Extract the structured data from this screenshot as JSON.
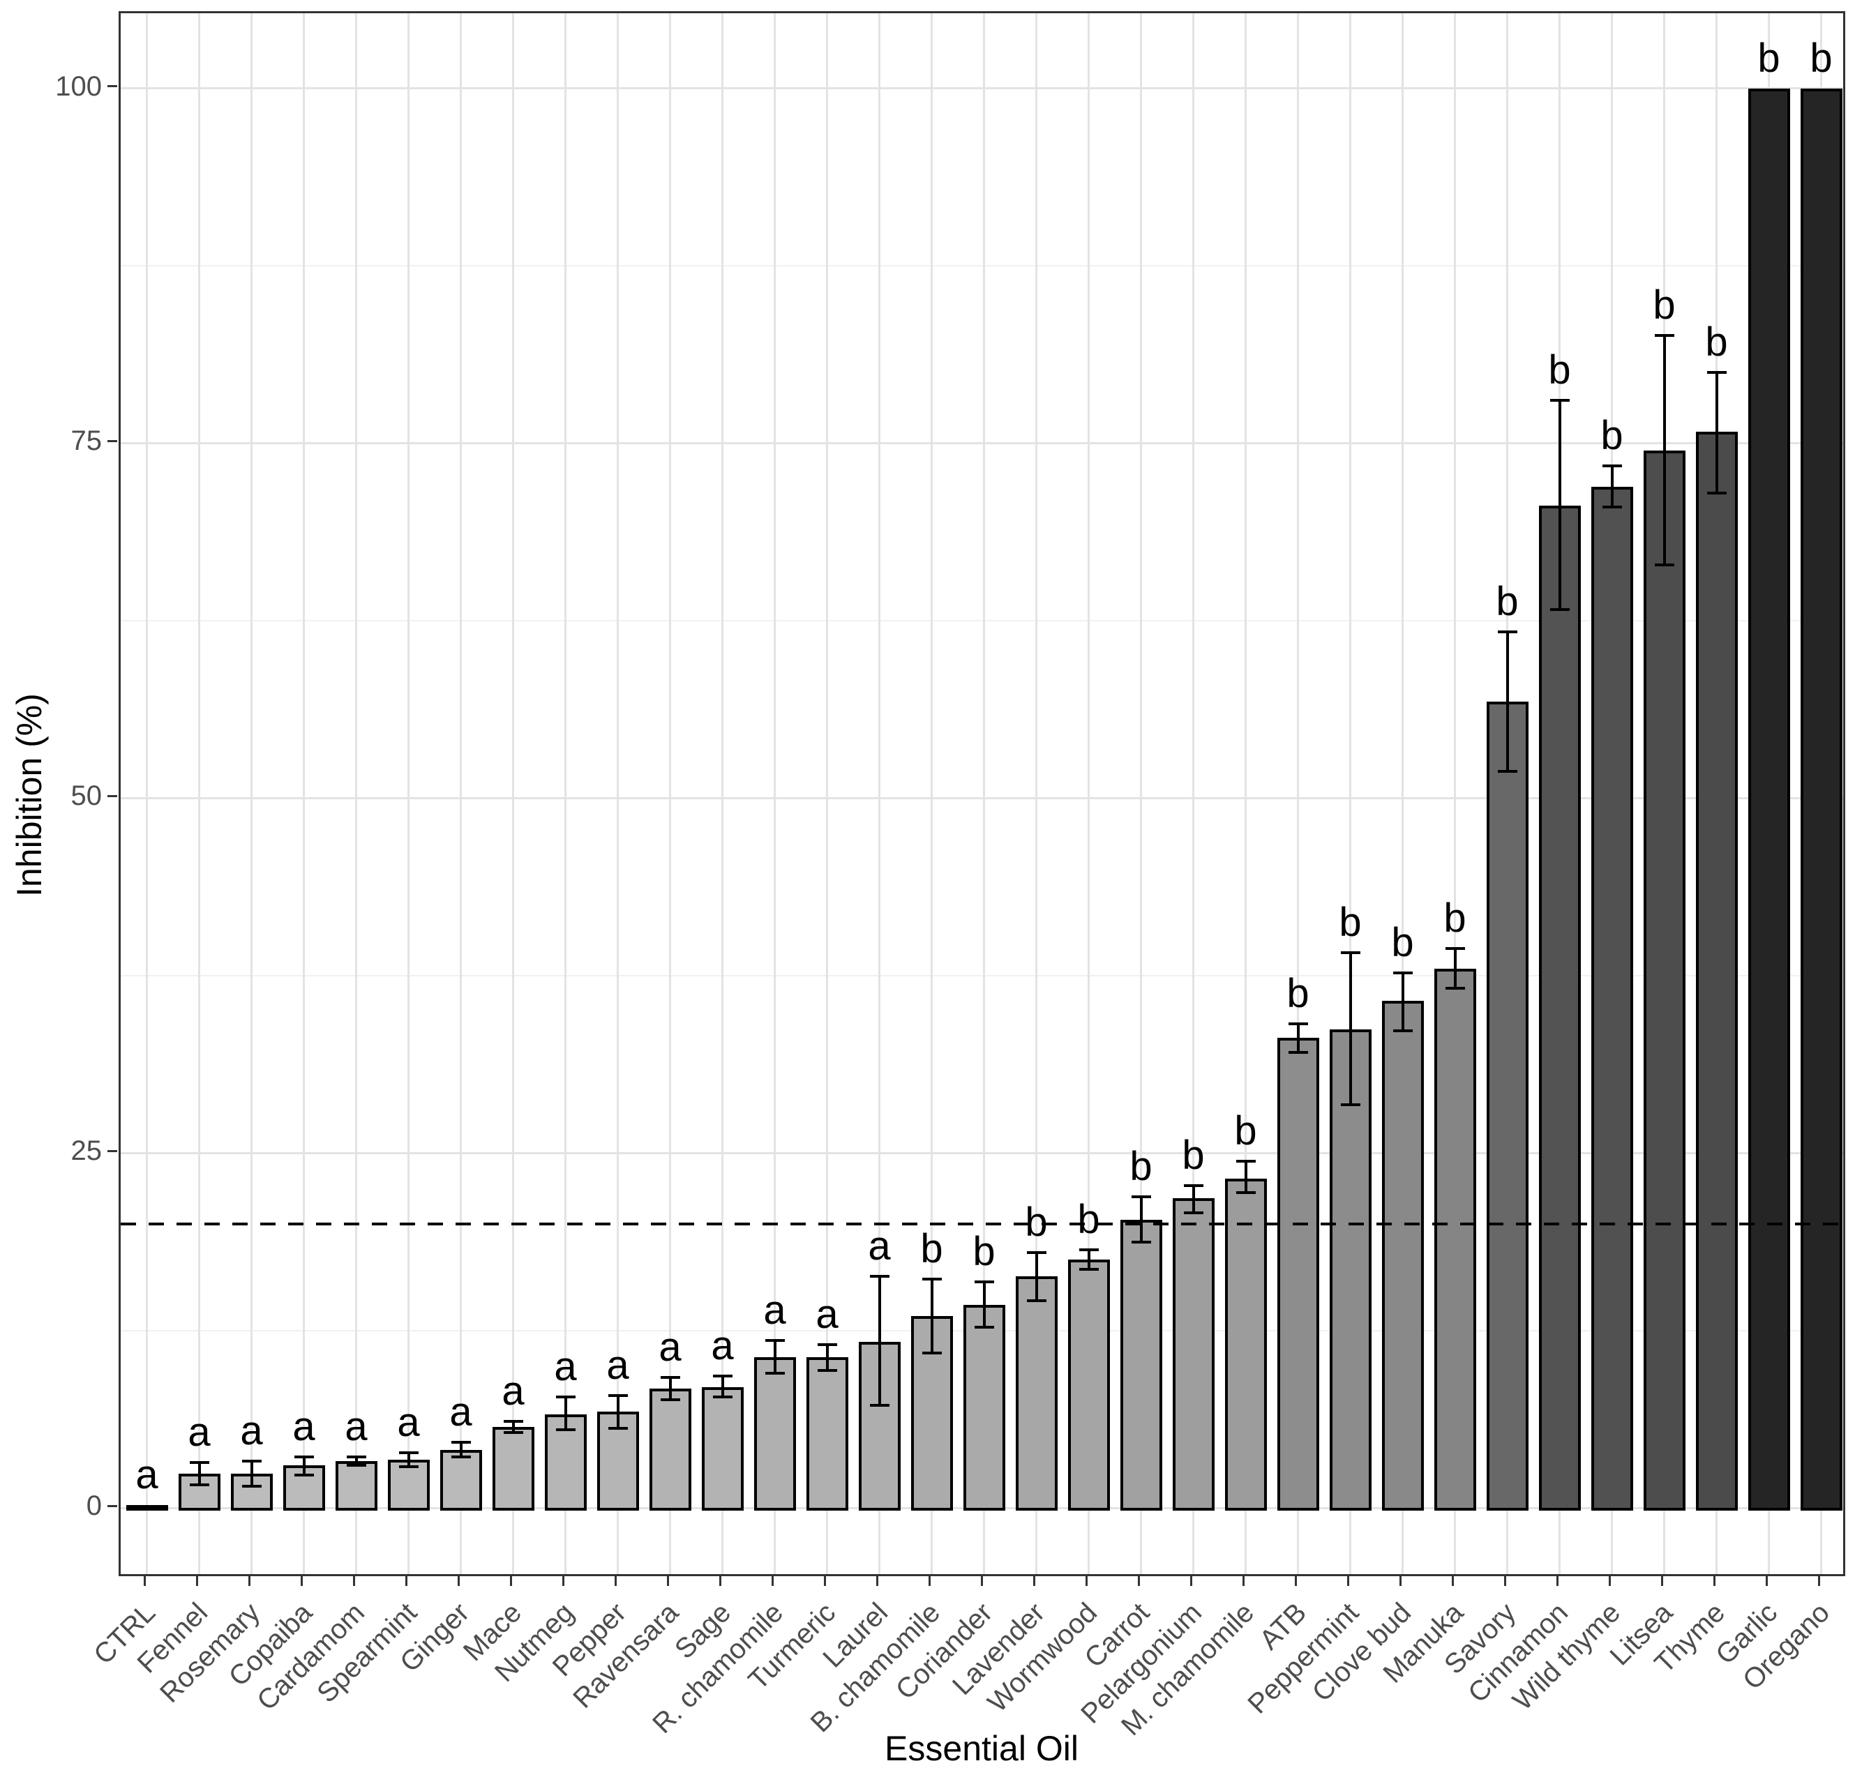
{
  "chart_data": {
    "type": "bar",
    "title": "",
    "xlabel": "Essential Oil",
    "ylabel": "Inhibition (%)",
    "ylim": [
      -5,
      105
    ],
    "yticks": [
      0,
      25,
      50,
      75,
      100
    ],
    "minor_yticks": [
      12.5,
      37.5,
      62.5,
      87.5
    ],
    "grid": true,
    "legend": false,
    "threshold_line": {
      "y": 20,
      "style": "dashed",
      "color": "#000000"
    },
    "bar_border_color": "#000000",
    "fill_gradient": {
      "at0": "#c0c0c0",
      "at100": "#232323"
    },
    "bars": [
      {
        "label": "CTRL",
        "value": 0.2,
        "err_low": null,
        "err_high": null,
        "letter": "a"
      },
      {
        "label": "Fennel",
        "value": 2.4,
        "err_low": 1.6,
        "err_high": 3.2,
        "letter": "a"
      },
      {
        "label": "Rosemary",
        "value": 2.4,
        "err_low": 1.5,
        "err_high": 3.3,
        "letter": "a"
      },
      {
        "label": "Copaiba",
        "value": 3.0,
        "err_low": 2.3,
        "err_high": 3.6,
        "letter": "a"
      },
      {
        "label": "Cardamom",
        "value": 3.3,
        "err_low": 3.0,
        "err_high": 3.6,
        "letter": "a"
      },
      {
        "label": "Spearmint",
        "value": 3.4,
        "err_low": 2.9,
        "err_high": 3.9,
        "letter": "a"
      },
      {
        "label": "Ginger",
        "value": 4.1,
        "err_low": 3.6,
        "err_high": 4.6,
        "letter": "a"
      },
      {
        "label": "Mace",
        "value": 5.7,
        "err_low": 5.3,
        "err_high": 6.1,
        "letter": "a"
      },
      {
        "label": "Nutmeg",
        "value": 6.6,
        "err_low": 5.5,
        "err_high": 7.8,
        "letter": "a"
      },
      {
        "label": "Pepper",
        "value": 6.8,
        "err_low": 5.6,
        "err_high": 7.9,
        "letter": "a"
      },
      {
        "label": "Ravensara",
        "value": 8.4,
        "err_low": 7.6,
        "err_high": 9.2,
        "letter": "a"
      },
      {
        "label": "Sage",
        "value": 8.5,
        "err_low": 7.8,
        "err_high": 9.3,
        "letter": "a"
      },
      {
        "label": "R. chamomile",
        "value": 10.6,
        "err_low": 9.5,
        "err_high": 11.8,
        "letter": "a"
      },
      {
        "label": "Turmeric",
        "value": 10.6,
        "err_low": 9.7,
        "err_high": 11.5,
        "letter": "a"
      },
      {
        "label": "Laurel",
        "value": 11.7,
        "err_low": 7.2,
        "err_high": 16.3,
        "letter": "a"
      },
      {
        "label": "B. chamomile",
        "value": 13.5,
        "err_low": 10.9,
        "err_high": 16.1,
        "letter": "b"
      },
      {
        "label": "Coriander",
        "value": 14.3,
        "err_low": 12.7,
        "err_high": 15.9,
        "letter": "b"
      },
      {
        "label": "Lavender",
        "value": 16.3,
        "err_low": 14.6,
        "err_high": 18.0,
        "letter": "b"
      },
      {
        "label": "Wormwood",
        "value": 17.5,
        "err_low": 16.8,
        "err_high": 18.2,
        "letter": "b"
      },
      {
        "label": "Carrot",
        "value": 20.3,
        "err_low": 18.7,
        "err_high": 21.9,
        "letter": "b"
      },
      {
        "label": "Pelargonium",
        "value": 21.8,
        "err_low": 20.8,
        "err_high": 22.7,
        "letter": "b"
      },
      {
        "label": "M. chamomile",
        "value": 23.2,
        "err_low": 22.2,
        "err_high": 24.4,
        "letter": "b"
      },
      {
        "label": "ATB",
        "value": 33.1,
        "err_low": 32.1,
        "err_high": 34.1,
        "letter": "b"
      },
      {
        "label": "Peppermint",
        "value": 33.7,
        "err_low": 28.4,
        "err_high": 39.1,
        "letter": "b"
      },
      {
        "label": "Clove bud",
        "value": 35.7,
        "err_low": 33.6,
        "err_high": 37.7,
        "letter": "b"
      },
      {
        "label": "Manuka",
        "value": 38.0,
        "err_low": 36.6,
        "err_high": 39.4,
        "letter": "b"
      },
      {
        "label": "Savory",
        "value": 56.8,
        "err_low": 51.9,
        "err_high": 61.7,
        "letter": "b"
      },
      {
        "label": "Cinnamon",
        "value": 70.6,
        "err_low": 63.3,
        "err_high": 78.0,
        "letter": "b"
      },
      {
        "label": "Wild thyme",
        "value": 71.9,
        "err_low": 70.5,
        "err_high": 73.4,
        "letter": "b"
      },
      {
        "label": "Litsea",
        "value": 74.5,
        "err_low": 66.4,
        "err_high": 82.6,
        "letter": "b"
      },
      {
        "label": "Thyme",
        "value": 75.8,
        "err_low": 71.5,
        "err_high": 80.0,
        "letter": "b"
      },
      {
        "label": "Garlic",
        "value": 100,
        "err_low": null,
        "err_high": null,
        "letter": "b"
      },
      {
        "label": "Oregano",
        "value": 100,
        "err_low": null,
        "err_high": null,
        "letter": "b"
      }
    ]
  }
}
